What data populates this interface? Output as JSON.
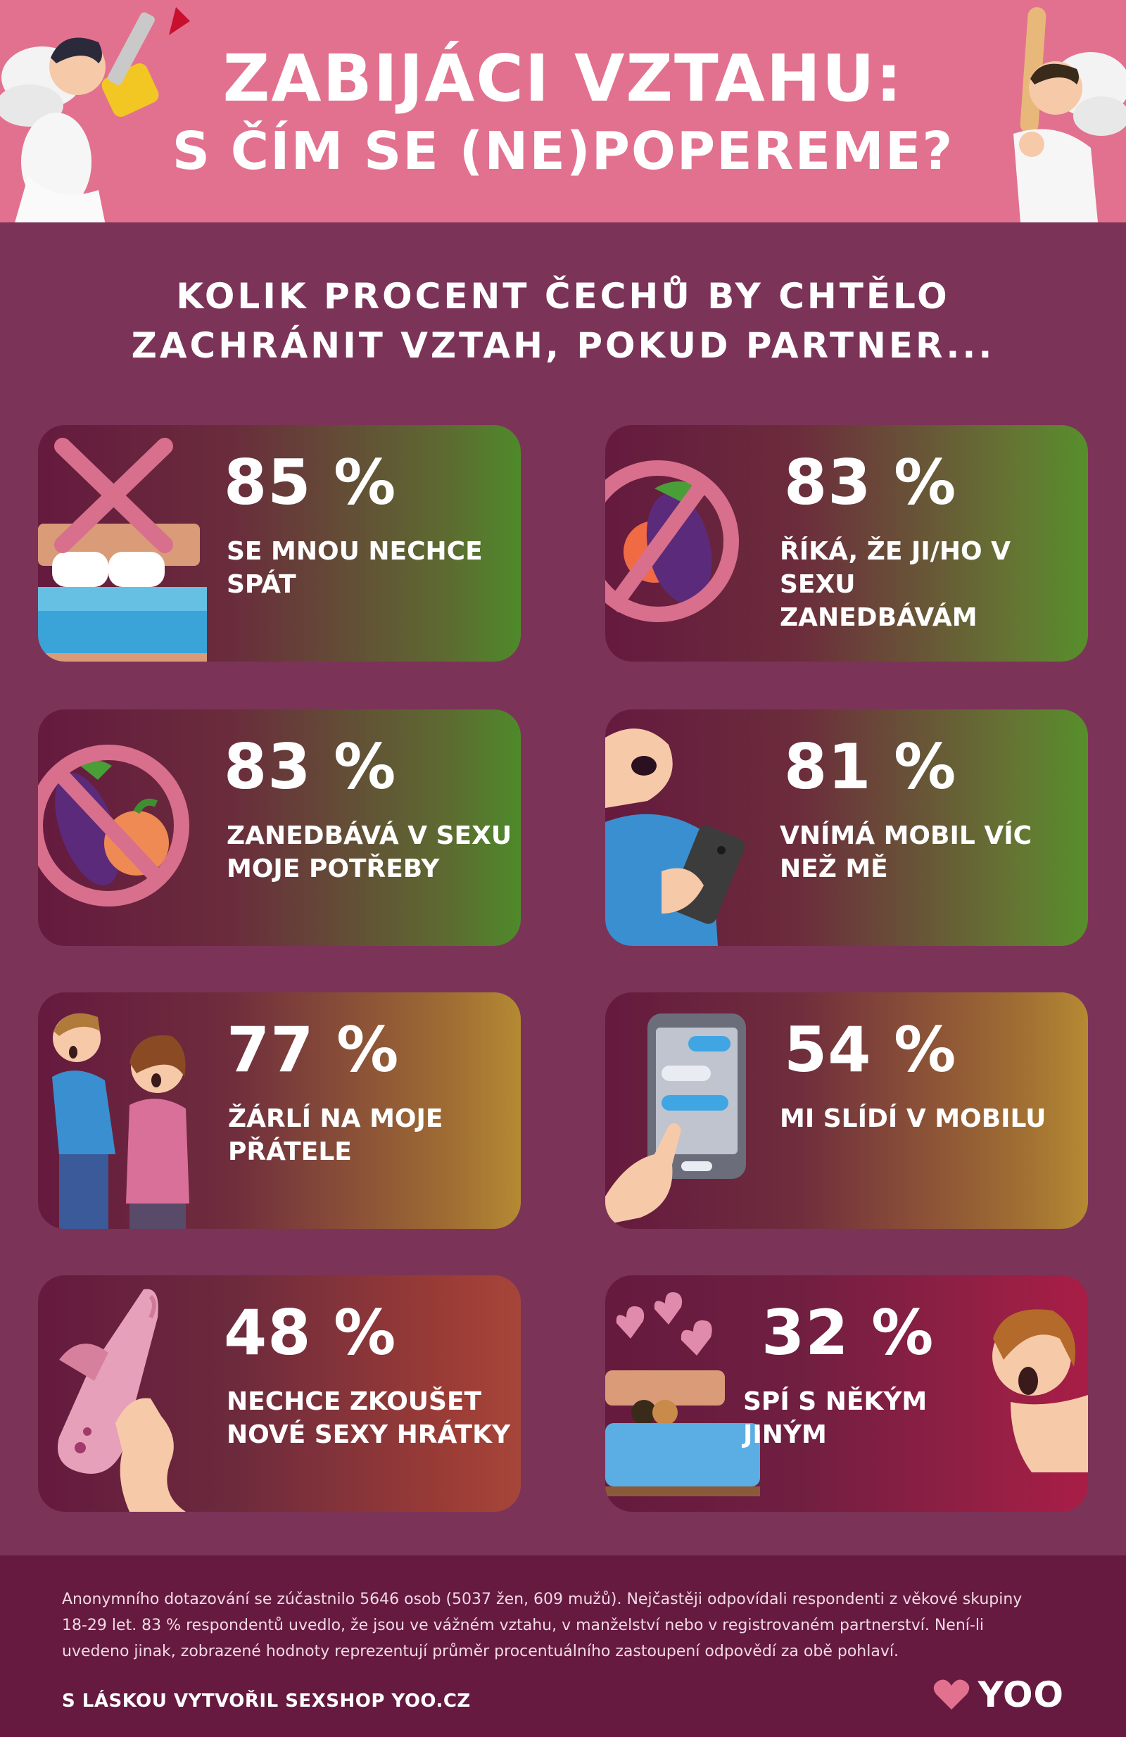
{
  "header": {
    "title_line1": "ZABIJÁCI VZTAHU:",
    "title_line2": "S ČÍM SE (NE)POPEREME?"
  },
  "intro": {
    "line1": "KOLIK PROCENT ČECHŮ BY CHTĚLO",
    "line2": "ZACHRÁNIT VZTAH, POKUD PARTNER..."
  },
  "cards": [
    {
      "percent": "85 %",
      "label_line1": "SE MNOU NECHCE",
      "label_line2": "SPÁT",
      "icon": "bed-with-x-icon",
      "value": 85
    },
    {
      "percent": "83 %",
      "label_line1": "ŘÍKÁ, ŽE JI/HO V SEXU",
      "label_line2": "ZANEDBÁVÁM",
      "icon": "forbidden-eggplant-peach-icon",
      "value": 83
    },
    {
      "percent": "83 %",
      "label_line1": "ZANEDBÁVÁ V SEXU",
      "label_line2": "MOJE POTŘEBY",
      "icon": "forbidden-eggplant-peach-icon",
      "value": 83
    },
    {
      "percent": "81 %",
      "label_line1": "VNÍMÁ MOBIL VÍC",
      "label_line2": "NEŽ MĚ",
      "icon": "person-with-phone-icon",
      "value": 81
    },
    {
      "percent": "77 %",
      "label_line1": "ŽÁRLÍ NA MOJE",
      "label_line2": "PŘÁTELE",
      "icon": "jealous-couple-icon",
      "value": 77
    },
    {
      "percent": "54 %",
      "label_line1": "MI SLÍDÍ V MOBILU",
      "label_line2": "",
      "icon": "phone-messages-icon",
      "value": 54
    },
    {
      "percent": "48 %",
      "label_line1": "NECHCE ZKOUŠET",
      "label_line2": "NOVÉ SEXY HRÁTKY",
      "icon": "toy-thumbs-down-icon",
      "value": 48
    },
    {
      "percent": "32 %",
      "label_line1": "SPÍ S NĚKÝM JINÝM",
      "label_line2": "",
      "icon": "cheating-bed-icon",
      "value": 32
    }
  ],
  "footer": {
    "survey_line1": "Anonymního dotazování se zúčastnilo 5646 osob (5037 žen, 609 mužů).  Nejčastěji odpovídali respondenti z věkové skupiny",
    "survey_line2": "18-29 let. 83 % respondentů uvedlo, že jsou ve vážném vztahu, v manželství nebo v registrovaném partnerství. Není-li",
    "survey_line3": "uvedeno jinak, zobrazené hodnoty reprezentují průměr procentuálního zastoupení odpovědí za obě pohlaví.",
    "credit": "S LÁSKOU VYTVOŘIL SEXSHOP YOO.CZ",
    "brand": "YOO"
  },
  "colors": {
    "background": "#7c3358",
    "header": "#e2718f",
    "card_dark": "#651a3e",
    "accent_pink": "#e2718f"
  }
}
